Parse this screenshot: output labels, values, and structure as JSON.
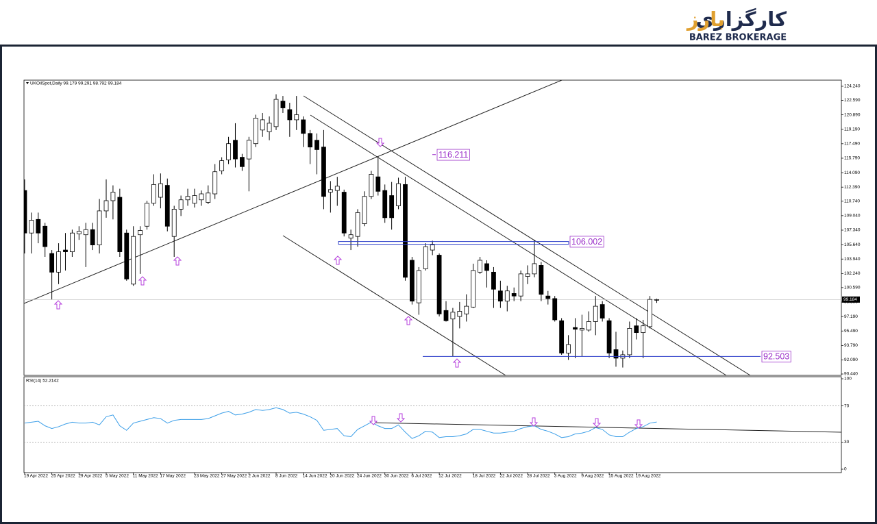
{
  "header": {
    "logo_fa_main": "کارگزاری",
    "logo_fa_brand": "بارز",
    "logo_en": "BAREZ BROKERAGE"
  },
  "chart_data": [
    {
      "type": "candlestick",
      "title": "UKOilSpot,Daily  99.179 99.291 98.792 99.184",
      "categories": [
        "19 Apr 2022",
        null,
        null,
        null,
        "25 Apr 2022",
        null,
        null,
        null,
        "29 Apr 2022",
        null,
        null,
        null,
        "5 May 2022",
        null,
        null,
        null,
        "11 May 2022",
        null,
        null,
        null,
        "17 May 2022",
        null,
        null,
        null,
        null,
        "23 May 2022",
        null,
        null,
        null,
        "27 May 2022",
        null,
        null,
        null,
        "2 Jun 2022",
        null,
        null,
        null,
        "8 Jun 2022",
        null,
        null,
        null,
        "14 Jun 2022",
        null,
        null,
        null,
        "20 Jun 2022",
        null,
        null,
        null,
        "24 Jun 2022",
        null,
        null,
        null,
        "30 Jun 2022",
        null,
        null,
        null,
        "6 Jul 2022",
        null,
        null,
        null,
        "12 Jul 2022",
        null,
        null,
        null,
        null,
        "18 Jul 2022",
        null,
        null,
        null,
        "22 Jul 2022",
        null,
        null,
        null,
        "28 Jul 2022",
        null,
        null,
        null,
        "3 Aug 2022",
        null,
        null,
        null,
        "9 Aug 2022",
        null,
        null,
        null,
        "15 Aug 2022",
        null,
        null,
        null,
        "19 Aug 2022",
        null,
        null,
        null
      ],
      "open": [
        112.0,
        107.0,
        108.6,
        107.8,
        104.6,
        102.4,
        105.0,
        104.8,
        106.9,
        106.8,
        107.4,
        105.6,
        109.6,
        110.8,
        111.2,
        107.0,
        101.0,
        106.8,
        107.8,
        110.5,
        111.2,
        112.6,
        106.6,
        109.8,
        110.9,
        110.5,
        110.9,
        110.6,
        111.6,
        114.3,
        115.6,
        117.9,
        115.9,
        115.7,
        117.5,
        119.1,
        118.9,
        119.5,
        122.5,
        121.5,
        120.3,
        120.3,
        118.7,
        117.9,
        117.1,
        111.8,
        112.0,
        111.8,
        106.4,
        106.6,
        108.1,
        111.3,
        113.6,
        112.0,
        111.4,
        110.2,
        112.7,
        103.8,
        98.8,
        102.8,
        105.0,
        104.4,
        97.9,
        96.9,
        97.2,
        97.5,
        98.3,
        102.4,
        103.4,
        102.4,
        100.2,
        99.0,
        99.9,
        99.6,
        101.9,
        102.2,
        103.2,
        99.6,
        99.3,
        96.7,
        92.9,
        95.9,
        95.6,
        95.6,
        96.6,
        98.6,
        96.7,
        93.3,
        92.3,
        92.7,
        96.1,
        95.3,
        96.0,
        99.179
      ],
      "high": [
        113.3,
        109.4,
        109.4,
        108.2,
        105.0,
        105.8,
        107.0,
        107.4,
        107.8,
        108.2,
        108.2,
        111.0,
        113.3,
        112.6,
        112.2,
        107.4,
        107.8,
        107.8,
        110.8,
        113.9,
        114.0,
        113.4,
        110.2,
        111.4,
        112.2,
        112.2,
        112.0,
        112.6,
        115.1,
        115.9,
        118.3,
        119.9,
        116.3,
        118.3,
        120.9,
        121.1,
        120.7,
        123.3,
        123.1,
        122.3,
        123.1,
        120.7,
        119.1,
        118.7,
        119.1,
        113.1,
        113.6,
        112.1,
        107.4,
        109.8,
        111.9,
        114.3,
        116.0,
        112.7,
        113.0,
        113.5,
        113.6,
        104.2,
        103.0,
        105.8,
        106.1,
        104.6,
        99.0,
        98.2,
        98.9,
        99.8,
        103.4,
        104.2,
        103.8,
        103.0,
        101.4,
        100.8,
        100.6,
        102.6,
        103.2,
        106.2,
        103.6,
        100.2,
        99.6,
        97.0,
        95.0,
        97.0,
        97.4,
        97.8,
        99.6,
        99.0,
        97.0,
        95.4,
        93.2,
        96.6,
        97.0,
        96.8,
        99.6,
        99.291
      ],
      "low": [
        104.6,
        104.6,
        105.8,
        104.2,
        99.2,
        101.0,
        102.6,
        104.2,
        106.2,
        103.0,
        105.0,
        104.6,
        108.8,
        108.6,
        104.2,
        101.4,
        100.8,
        102.2,
        107.4,
        110.2,
        109.9,
        107.2,
        104.2,
        109.0,
        110.2,
        110.0,
        110.2,
        110.4,
        111.0,
        113.9,
        115.1,
        114.7,
        114.3,
        111.9,
        117.1,
        118.3,
        117.9,
        119.1,
        121.1,
        118.3,
        119.1,
        117.1,
        115.1,
        113.9,
        109.8,
        109.4,
        110.2,
        106.6,
        105.0,
        105.4,
        107.8,
        111.0,
        111.4,
        108.2,
        107.4,
        109.8,
        101.4,
        98.6,
        97.4,
        102.6,
        104.4,
        97.2,
        96.6,
        92.5,
        95.8,
        96.6,
        98.2,
        102.2,
        100.6,
        98.2,
        98.2,
        97.8,
        99.0,
        99.0,
        101.0,
        101.8,
        99.0,
        98.6,
        96.6,
        92.7,
        92.1,
        92.3,
        92.5,
        95.4,
        95.0,
        96.6,
        92.3,
        91.3,
        91.2,
        92.3,
        94.5,
        92.3,
        95.8,
        98.792
      ],
      "close": [
        107.0,
        108.5,
        107.0,
        105.4,
        102.4,
        104.8,
        104.8,
        107.0,
        107.2,
        107.4,
        105.6,
        109.6,
        110.8,
        111.8,
        104.8,
        101.6,
        106.6,
        107.3,
        110.5,
        112.7,
        112.8,
        107.8,
        109.8,
        110.9,
        111.3,
        111.4,
        111.6,
        111.7,
        114.2,
        115.5,
        117.5,
        115.7,
        114.8,
        117.9,
        120.5,
        120.3,
        119.9,
        122.7,
        121.7,
        120.3,
        120.9,
        118.7,
        117.1,
        116.8,
        111.3,
        112.1,
        112.5,
        107.0,
        106.8,
        109.4,
        111.3,
        113.9,
        111.9,
        108.8,
        108.8,
        112.8,
        101.8,
        99.0,
        102.6,
        105.4,
        105.6,
        97.5,
        96.7,
        97.7,
        97.8,
        98.4,
        102.6,
        103.8,
        102.6,
        100.4,
        99.0,
        100.2,
        99.6,
        102.2,
        102.2,
        103.4,
        99.8,
        99.3,
        96.8,
        92.9,
        93.9,
        95.7,
        95.8,
        96.6,
        98.4,
        97.0,
        92.9,
        92.3,
        92.7,
        95.8,
        95.3,
        96.1,
        99.2,
        99.184
      ],
      "up_color": "#ffffff",
      "down_color": "#000000",
      "ylim": [
        90.28,
        124.96
      ],
      "yticks": [
        {
          "value": 124.24,
          "label": "124.240"
        },
        {
          "value": 122.59,
          "label": "122.590"
        },
        {
          "value": 120.89,
          "label": "120.890"
        },
        {
          "value": 119.19,
          "label": "119.190"
        },
        {
          "value": 117.49,
          "label": "117.490"
        },
        {
          "value": 115.79,
          "label": "115.790"
        },
        {
          "value": 114.09,
          "label": "114.090"
        },
        {
          "value": 112.39,
          "label": "112.390"
        },
        {
          "value": 110.74,
          "label": "110.740"
        },
        {
          "value": 109.04,
          "label": "109.040"
        },
        {
          "value": 107.34,
          "label": "107.340"
        },
        {
          "value": 105.64,
          "label": "105.640"
        },
        {
          "value": 103.94,
          "label": "103.940"
        },
        {
          "value": 102.24,
          "label": "102.240"
        },
        {
          "value": 100.59,
          "label": "100.590"
        },
        {
          "value": 98.89,
          "label": "98.890"
        },
        {
          "value": 97.19,
          "label": "97.190"
        },
        {
          "value": 95.49,
          "label": "95.490"
        },
        {
          "value": 93.79,
          "label": "93.790"
        },
        {
          "value": 92.09,
          "label": "92.090"
        },
        {
          "value": 90.44,
          "label": "90.440"
        }
      ],
      "grid": false,
      "last_price": 99.184,
      "levels": [
        116.211,
        106.002,
        92.503
      ],
      "level_color": "#9b2fc9",
      "level_line_color": "#2a3cc8"
    },
    {
      "type": "line",
      "title": "RSI(14) 52.2142",
      "values": [
        51,
        52,
        53,
        48,
        45,
        47,
        50,
        52,
        51,
        51,
        52,
        49,
        58,
        60,
        48,
        43,
        51,
        53,
        55,
        57,
        56,
        51,
        54,
        55,
        55,
        55,
        55,
        56,
        59,
        62,
        64,
        60,
        61,
        63,
        66,
        65,
        66,
        68,
        66,
        62,
        63,
        61,
        58,
        54,
        43,
        44,
        45,
        37,
        36,
        44,
        48,
        52,
        48,
        45,
        45,
        49,
        41,
        34,
        37,
        42,
        41,
        35,
        36,
        36,
        37,
        39,
        44,
        44,
        42,
        40,
        40,
        41,
        42,
        45,
        47,
        48,
        44,
        42,
        39,
        35,
        36,
        39,
        40,
        42,
        46,
        44,
        38,
        36,
        36,
        41,
        45,
        47,
        51,
        52.2142
      ],
      "color": "#3b9ee8",
      "ylim": [
        0,
        100
      ],
      "yticks": [
        100,
        70,
        30,
        0
      ],
      "levels": [
        70,
        30
      ]
    }
  ]
}
